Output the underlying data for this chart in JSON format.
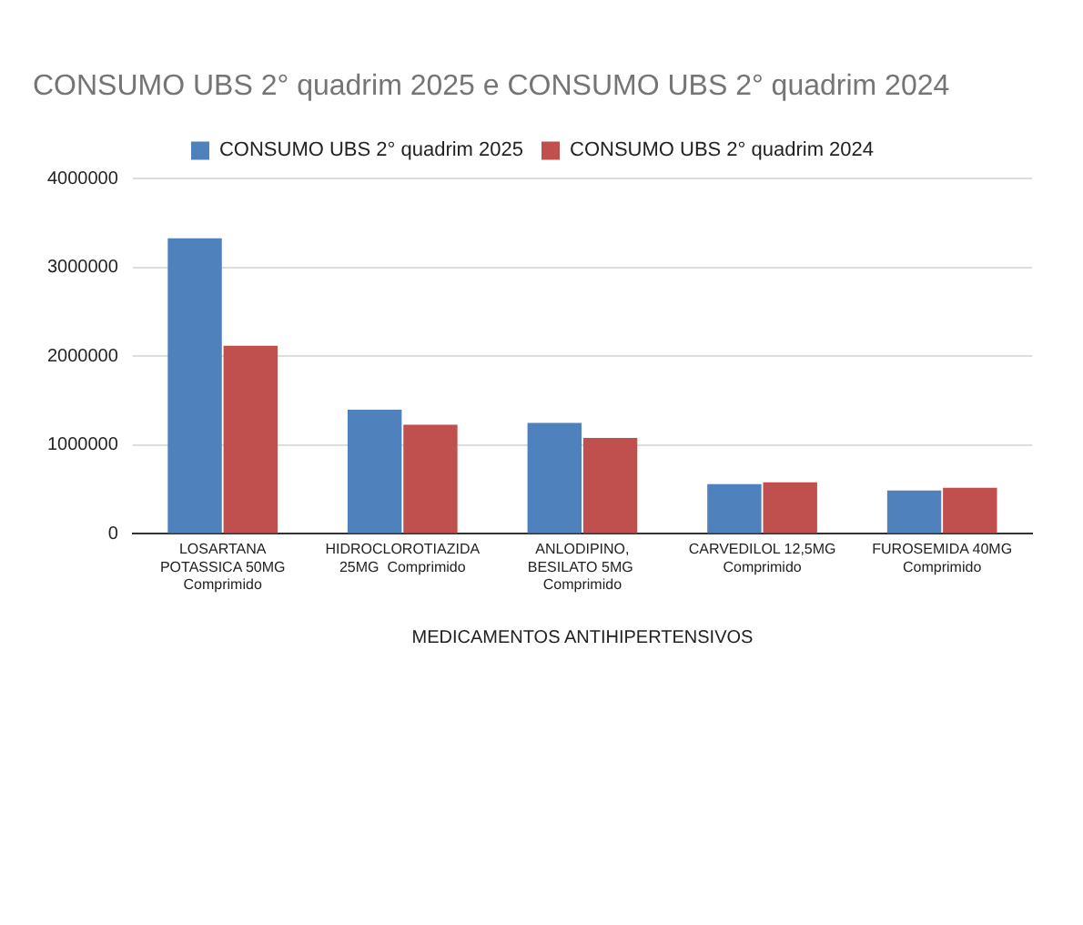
{
  "chart_data": {
    "type": "bar",
    "title": "CONSUMO UBS 2° quadrim 2025 e CONSUMO UBS 2° quadrim 2024",
    "xlabel": "MEDICAMENTOS ANTIHIPERTENSIVOS",
    "categories": [
      "LOSARTANA POTASSICA 50MG Comprimido",
      "HIDROCLOROTIAZIDA 25MG  Comprimido",
      "ANLODIPINO, BESILATO 5MG  Comprimido",
      "CARVEDILOL 12,5MG Comprimido",
      "FUROSEMIDA 40MG Comprimido"
    ],
    "series": [
      {
        "name": "CONSUMO UBS 2° quadrim 2025",
        "color": "#4f81bd",
        "values": [
          3330000,
          1400000,
          1250000,
          560000,
          490000
        ]
      },
      {
        "name": "CONSUMO UBS 2° quadrim 2024",
        "color": "#c0504d",
        "values": [
          2120000,
          1230000,
          1080000,
          580000,
          520000
        ]
      }
    ],
    "ylim": [
      0,
      4000000
    ],
    "yticks": [
      0,
      1000000,
      2000000,
      3000000,
      4000000
    ],
    "grid": "y",
    "legend": "top"
  }
}
